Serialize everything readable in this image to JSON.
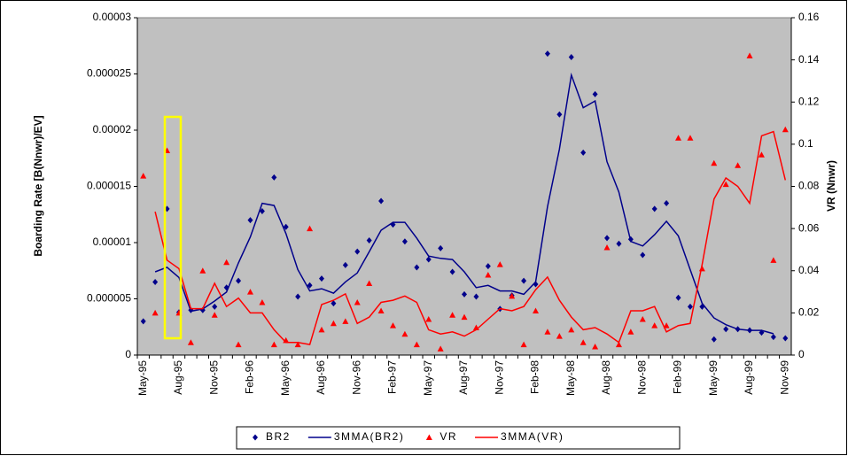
{
  "chart_data": {
    "type": "combo",
    "ylabel": "Boarding Rate [B(Nnwr)/EV]",
    "y2label": "VR (Nnwr)",
    "categories": [
      "May-95",
      null,
      null,
      "Aug-95",
      null,
      null,
      "Nov-95",
      null,
      null,
      "Feb-96",
      null,
      null,
      "May-96",
      null,
      null,
      "Aug-96",
      null,
      null,
      "Nov-96",
      null,
      null,
      "Feb-97",
      null,
      null,
      "May-97",
      null,
      null,
      "Aug-97",
      null,
      null,
      "Nov-97",
      null,
      null,
      "Feb-98",
      null,
      null,
      "May-98",
      null,
      null,
      "Aug-98",
      null,
      null,
      "Nov-98",
      null,
      null,
      "Feb-99",
      null,
      null,
      "May-99",
      null,
      null,
      "Aug-99",
      null,
      null,
      "Nov-99"
    ],
    "ylim": [
      0,
      3e-05
    ],
    "yticks": [
      0,
      5e-06,
      1e-05,
      1.5e-05,
      2e-05,
      2.5e-05,
      3e-05
    ],
    "y2lim": [
      0,
      0.16
    ],
    "y2ticks": [
      0,
      0.02,
      0.04,
      0.06,
      0.08,
      0.1,
      0.12,
      0.14,
      0.16
    ],
    "legend": "bottom",
    "series": [
      {
        "name": "BR2",
        "color": "#00008b",
        "marker": "diamond",
        "values": [
          3e-06,
          6.5e-06,
          1.3e-05,
          3.8e-06,
          4e-06,
          4e-06,
          4.3e-06,
          6e-06,
          6.6e-06,
          1.2e-05,
          1.28e-05,
          1.58e-05,
          1.14e-05,
          5.2e-06,
          6.2e-06,
          6.8e-06,
          4.6e-06,
          8e-06,
          9.2e-06,
          1.02e-05,
          1.37e-05,
          1.16e-05,
          1.01e-05,
          7.8e-06,
          8.5e-06,
          9.5e-06,
          7.4e-06,
          5.4e-06,
          5.2e-06,
          7.9e-06,
          4.1e-06,
          5.3e-06,
          6.6e-06,
          6.3e-06,
          2.68e-05,
          2.14e-05,
          2.65e-05,
          1.8e-05,
          2.32e-05,
          1.04e-05,
          9.9e-06,
          1.03e-05,
          8.9e-06,
          1.3e-05,
          1.35e-05,
          5.1e-06,
          4.3e-06,
          4.3e-06,
          1.4e-06,
          2.3e-06,
          2.3e-06,
          2.2e-06,
          2e-06,
          1.6e-06,
          1.5e-06
        ]
      },
      {
        "name": "3MMA(BR2)",
        "color": "#00008b",
        "marker": "line",
        "values": [
          null,
          7.4e-06,
          7.8e-06,
          6.9e-06,
          3.9e-06,
          4.1e-06,
          4.8e-06,
          5.6e-06,
          8.2e-06,
          1.05e-05,
          1.35e-05,
          1.33e-05,
          1.08e-05,
          7.6e-06,
          5.7e-06,
          5.9e-06,
          5.5e-06,
          6.5e-06,
          7.3e-06,
          9.2e-06,
          1.11e-05,
          1.18e-05,
          1.18e-05,
          1.04e-05,
          8.8e-06,
          8.6e-06,
          8.5e-06,
          7.4e-06,
          6e-06,
          6.2e-06,
          5.7e-06,
          5.7e-06,
          5.4e-06,
          6.5e-06,
          1.32e-05,
          1.83e-05,
          2.49e-05,
          2.2e-05,
          2.26e-05,
          1.72e-05,
          1.45e-05,
          1.01e-05,
          9.7e-06,
          1.07e-05,
          1.19e-05,
          1.06e-05,
          7.6e-06,
          4.6e-06,
          3.3e-06,
          2.7e-06,
          2.3e-06,
          2.2e-06,
          2.2e-06,
          1.9e-06,
          null
        ]
      },
      {
        "name": "VR",
        "color": "#ff0000",
        "marker": "triangle",
        "axis": "y2",
        "values": [
          0.085,
          0.02,
          0.097,
          0.02,
          0.006,
          0.04,
          0.019,
          0.044,
          0.005,
          0.03,
          0.025,
          0.005,
          0.007,
          0.005,
          0.06,
          0.012,
          0.015,
          0.016,
          0.025,
          0.034,
          0.021,
          0.014,
          0.01,
          0.005,
          0.017,
          0.003,
          0.019,
          0.018,
          0.013,
          0.038,
          0.043,
          0.028,
          0.005,
          0.021,
          0.011,
          0.009,
          0.012,
          0.006,
          0.004,
          0.051,
          0.005,
          0.011,
          0.017,
          0.014,
          0.014,
          0.103,
          0.103,
          0.041,
          0.091,
          0.081,
          0.09,
          0.142,
          0.095,
          0.045,
          0.107
        ]
      },
      {
        "name": "3MMA(VR)",
        "color": "#ff0000",
        "marker": "line",
        "axis": "y2",
        "values": [
          null,
          0.068,
          0.045,
          0.041,
          0.022,
          0.022,
          0.034,
          0.023,
          0.027,
          0.02,
          0.02,
          0.012,
          0.006,
          0.006,
          0.005,
          0.024,
          0.026,
          0.029,
          0.015,
          0.018,
          0.025,
          0.026,
          0.028,
          0.025,
          0.012,
          0.01,
          0.011,
          0.009,
          0.012,
          0.017,
          0.022,
          0.021,
          0.023,
          0.031,
          0.037,
          0.026,
          0.018,
          0.012,
          0.013,
          0.01,
          0.006,
          0.021,
          0.021,
          0.023,
          0.011,
          0.014,
          0.015,
          0.043,
          0.074,
          0.084,
          0.08,
          0.072,
          0.104,
          0.106,
          0.083
        ]
      }
    ]
  }
}
